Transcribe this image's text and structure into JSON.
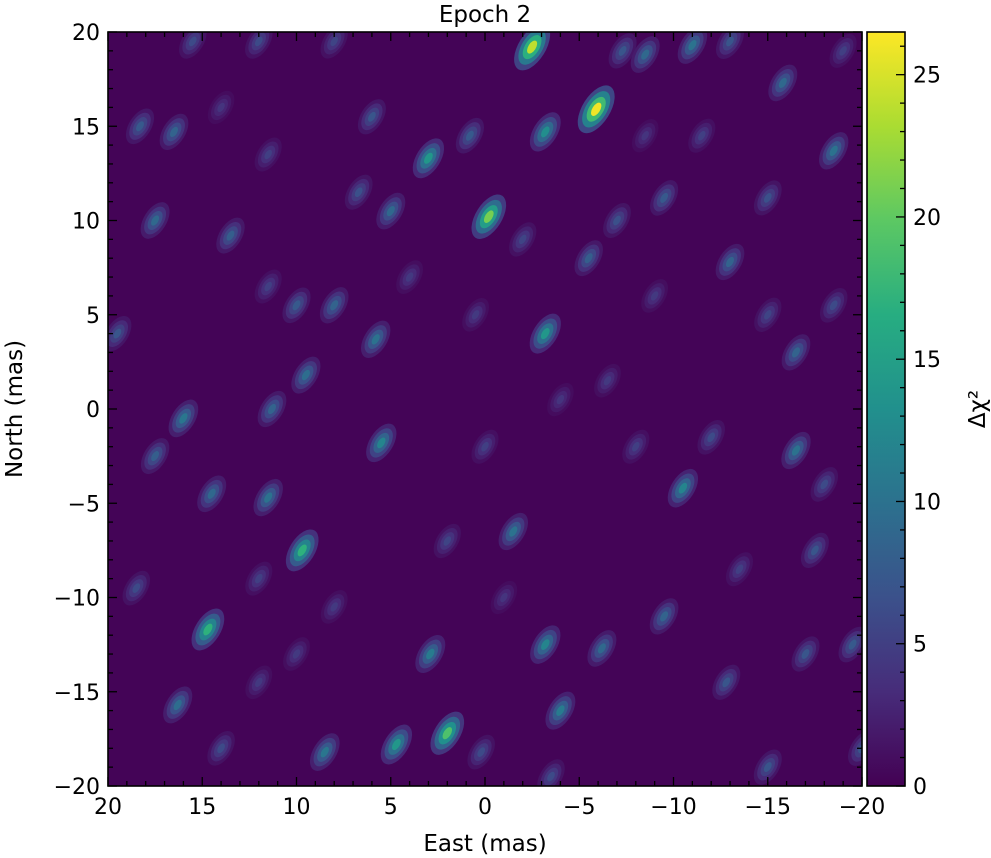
{
  "chart_data": {
    "type": "heatmap",
    "title": "Epoch 2",
    "xlabel": "East (mas)",
    "ylabel": "North (mas)",
    "colorbar_label": "Δχ²",
    "colormap": "viridis",
    "xlim": [
      20,
      -20
    ],
    "ylim": [
      -20,
      20
    ],
    "x_ticks": [
      20,
      15,
      10,
      5,
      0,
      -5,
      -10,
      -15,
      -20
    ],
    "x_tick_labels": [
      "20",
      "15",
      "10",
      "5",
      "0",
      "−5",
      "−10",
      "−15",
      "−20"
    ],
    "y_ticks": [
      -20,
      -15,
      -10,
      -5,
      0,
      5,
      10,
      15,
      20
    ],
    "y_tick_labels": [
      "−20",
      "−15",
      "−10",
      "−5",
      "0",
      "5",
      "10",
      "15",
      "20"
    ],
    "colorbar_range": [
      0,
      26.5
    ],
    "colorbar_ticks": [
      0,
      5,
      10,
      15,
      20,
      25
    ],
    "colorbar_tick_labels": [
      "0",
      "5",
      "10",
      "15",
      "20",
      "25"
    ],
    "peaks": [
      {
        "x": -5.9,
        "y": 15.9,
        "value": 26.0
      },
      {
        "x": -2.5,
        "y": 19.2,
        "value": 24.0
      },
      {
        "x": -0.2,
        "y": 10.2,
        "value": 21.0
      },
      {
        "x": 2.0,
        "y": -17.2,
        "value": 19.0
      },
      {
        "x": 14.7,
        "y": -11.7,
        "value": 17.0
      },
      {
        "x": 9.7,
        "y": -7.5,
        "value": 17.0
      },
      {
        "x": -3.2,
        "y": 4.0,
        "value": 14.0
      },
      {
        "x": 4.7,
        "y": -17.8,
        "value": 14.0
      },
      {
        "x": 3.0,
        "y": 13.3,
        "value": 14.0
      },
      {
        "x": -3.2,
        "y": 14.7,
        "value": 13.0
      },
      {
        "x": 5.5,
        "y": -1.8,
        "value": 12.0
      },
      {
        "x": -10.5,
        "y": -4.2,
        "value": 12.0
      },
      {
        "x": -3.2,
        "y": -12.5,
        "value": 12.0
      },
      {
        "x": -4.0,
        "y": -16.0,
        "value": 11.0
      },
      {
        "x": 2.9,
        "y": -13.0,
        "value": 11.0
      },
      {
        "x": 16.0,
        "y": -0.5,
        "value": 10.5
      },
      {
        "x": 8.5,
        "y": -18.2,
        "value": 10.5
      },
      {
        "x": -18.5,
        "y": 13.7,
        "value": 10.0
      },
      {
        "x": -16.5,
        "y": -2.2,
        "value": 10.0
      },
      {
        "x": 5.8,
        "y": 3.7,
        "value": 10.0
      },
      {
        "x": 11.5,
        "y": -4.7,
        "value": 10.0
      },
      {
        "x": 16.3,
        "y": -15.7,
        "value": 9.5
      },
      {
        "x": 9.5,
        "y": 1.8,
        "value": 9.5
      },
      {
        "x": 14.5,
        "y": -4.5,
        "value": 9.0
      },
      {
        "x": -11.0,
        "y": 19.3,
        "value": 10.0
      },
      {
        "x": -15.8,
        "y": 17.3,
        "value": 9.0
      },
      {
        "x": 17.5,
        "y": 10.0,
        "value": 9.0
      },
      {
        "x": 5.0,
        "y": 10.5,
        "value": 9.0
      },
      {
        "x": 8.0,
        "y": 5.5,
        "value": 8.5
      },
      {
        "x": 11.3,
        "y": 0.0,
        "value": 8.5
      },
      {
        "x": 16.5,
        "y": 14.7,
        "value": 8.5
      },
      {
        "x": -13.0,
        "y": 7.8,
        "value": 8.5
      },
      {
        "x": -8.5,
        "y": 18.8,
        "value": 9.0
      },
      {
        "x": -6.2,
        "y": -12.7,
        "value": 9.0
      },
      {
        "x": -9.5,
        "y": -11.0,
        "value": 8.5
      },
      {
        "x": -16.5,
        "y": 3.0,
        "value": 8.5
      },
      {
        "x": -5.5,
        "y": 8.0,
        "value": 8.0
      },
      {
        "x": 17.5,
        "y": -2.5,
        "value": 8.0
      },
      {
        "x": 13.5,
        "y": 9.2,
        "value": 8.0
      },
      {
        "x": 10.0,
        "y": 5.5,
        "value": 7.5
      },
      {
        "x": 0.8,
        "y": 14.5,
        "value": 7.5
      },
      {
        "x": -17.5,
        "y": -7.5,
        "value": 7.0
      },
      {
        "x": 6.0,
        "y": 15.5,
        "value": 7.0
      },
      {
        "x": -20.0,
        "y": -18.0,
        "value": 7.0
      },
      {
        "x": -9.5,
        "y": 11.2,
        "value": 7.5
      },
      {
        "x": -19.5,
        "y": -12.5,
        "value": 7.5
      },
      {
        "x": 18.3,
        "y": 15.0,
        "value": 7.5
      },
      {
        "x": 19.5,
        "y": 4.0,
        "value": 7.0
      },
      {
        "x": -7.3,
        "y": 19.0,
        "value": 7.0
      },
      {
        "x": -13.0,
        "y": 19.5,
        "value": 7.0
      },
      {
        "x": -12.8,
        "y": -14.5,
        "value": 7.0
      },
      {
        "x": -15.0,
        "y": -19.0,
        "value": 7.0
      },
      {
        "x": -17.0,
        "y": -13.0,
        "value": 7.0
      },
      {
        "x": 0.0,
        "y": -2.0,
        "value": 5.0
      },
      {
        "x": 6.7,
        "y": 11.5,
        "value": 6.5
      },
      {
        "x": -15.0,
        "y": 11.2,
        "value": 6.5
      },
      {
        "x": -1.5,
        "y": -6.5,
        "value": 10.0
      },
      {
        "x": 14.0,
        "y": -18.0,
        "value": 6.0
      },
      {
        "x": -18.5,
        "y": 5.5,
        "value": 6.0
      },
      {
        "x": 12.0,
        "y": 19.5,
        "value": 6.0
      },
      {
        "x": 15.5,
        "y": 19.5,
        "value": 6.0
      },
      {
        "x": 0.2,
        "y": -18.2,
        "value": 6.0
      },
      {
        "x": -12.0,
        "y": -1.5,
        "value": 6.0
      },
      {
        "x": 8.0,
        "y": 19.5,
        "value": 5.5
      },
      {
        "x": 2.0,
        "y": -7.0,
        "value": 5.5
      },
      {
        "x": -2.0,
        "y": 9.0,
        "value": 5.5
      },
      {
        "x": -7.0,
        "y": 10.0,
        "value": 6.5
      },
      {
        "x": -18.0,
        "y": -4.0,
        "value": 6.0
      },
      {
        "x": -3.5,
        "y": -19.5,
        "value": 6.0
      },
      {
        "x": -13.5,
        "y": -8.5,
        "value": 5.0
      },
      {
        "x": -15.0,
        "y": 5.0,
        "value": 5.5
      },
      {
        "x": -8.0,
        "y": -2.0,
        "value": 5.0
      },
      {
        "x": -9.0,
        "y": 6.0,
        "value": 4.5
      },
      {
        "x": 11.5,
        "y": 13.5,
        "value": 5.0
      },
      {
        "x": 12.0,
        "y": -9.0,
        "value": 5.0
      },
      {
        "x": 11.5,
        "y": 6.5,
        "value": 5.0
      },
      {
        "x": 18.5,
        "y": -9.5,
        "value": 6.0
      },
      {
        "x": 10.0,
        "y": -13.0,
        "value": 4.5
      },
      {
        "x": 8.0,
        "y": -10.5,
        "value": 4.5
      },
      {
        "x": -19.0,
        "y": 19.0,
        "value": 5.0
      },
      {
        "x": 12.0,
        "y": -14.5,
        "value": 4.5
      },
      {
        "x": 4.0,
        "y": 7.0,
        "value": 4.5
      },
      {
        "x": 0.5,
        "y": 5.0,
        "value": 4.5
      },
      {
        "x": -11.5,
        "y": 14.5,
        "value": 5.0
      },
      {
        "x": 14.0,
        "y": 16.0,
        "value": 4.0
      },
      {
        "x": -4.0,
        "y": 0.5,
        "value": 4.0
      },
      {
        "x": -6.5,
        "y": 1.5,
        "value": 4.5
      },
      {
        "x": -1.0,
        "y": -10.0,
        "value": 4.0
      },
      {
        "x": -8.5,
        "y": 14.5,
        "value": 4.0
      }
    ]
  }
}
